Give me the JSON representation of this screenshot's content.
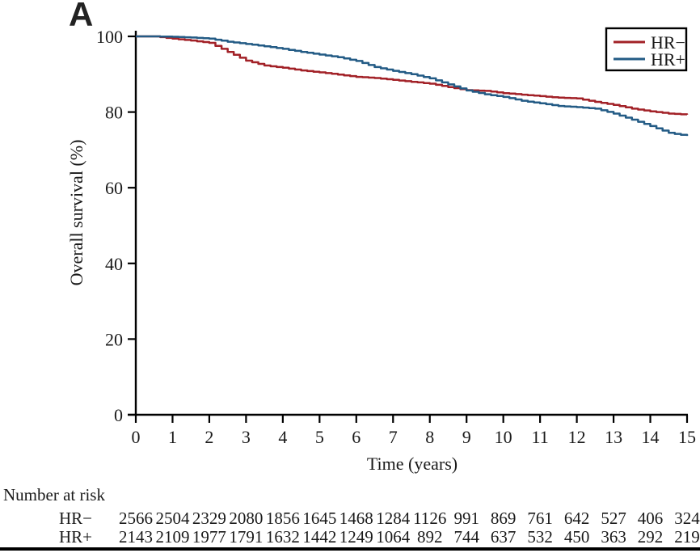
{
  "figure": {
    "panel_label": "A",
    "background": "#ffffff"
  },
  "chart_data": {
    "type": "line",
    "subtype": "kaplan-meier-step",
    "title": "",
    "xlabel": "Time (years)",
    "ylabel": "Overall survival (%)",
    "xlim": [
      0,
      15
    ],
    "ylim": [
      0,
      100
    ],
    "x_ticks": [
      0,
      1,
      2,
      3,
      4,
      5,
      6,
      7,
      8,
      9,
      10,
      11,
      12,
      13,
      14,
      15
    ],
    "y_ticks": [
      0,
      20,
      40,
      60,
      80,
      100
    ],
    "grid": false,
    "legend_position": "top-right",
    "axis_color": "#000000",
    "x": [
      0,
      0.5,
      1,
      1.5,
      2,
      2.5,
      3,
      3.5,
      4,
      4.5,
      5,
      5.5,
      6,
      6.5,
      7,
      7.5,
      8,
      8.5,
      9,
      9.5,
      10,
      10.5,
      11,
      11.5,
      12,
      12.5,
      13,
      13.5,
      14,
      14.5,
      15
    ],
    "series": [
      {
        "name": "HR−",
        "color": "#A22127",
        "values": [
          100,
          100,
          99.4,
          98.9,
          98.3,
          95.9,
          93.6,
          92.3,
          91.7,
          91.0,
          90.5,
          89.9,
          89.3,
          89.0,
          88.5,
          88.0,
          87.5,
          86.6,
          85.8,
          85.6,
          85.0,
          84.6,
          84.2,
          83.8,
          83.6,
          82.7,
          81.9,
          80.9,
          80.2,
          79.6,
          79.3
        ]
      },
      {
        "name": "HR+",
        "color": "#235B85",
        "values": [
          100,
          100,
          99.9,
          99.7,
          99.4,
          98.6,
          98.0,
          97.4,
          96.7,
          95.9,
          95.2,
          94.5,
          93.5,
          91.9,
          90.9,
          90.0,
          88.9,
          87.3,
          85.7,
          84.7,
          84.0,
          83.0,
          82.3,
          81.6,
          81.3,
          80.9,
          79.6,
          78.0,
          76.3,
          74.5,
          73.7
        ]
      }
    ],
    "number_at_risk": {
      "heading": "Number at risk",
      "time_points": [
        0,
        1,
        2,
        3,
        4,
        5,
        6,
        7,
        8,
        9,
        10,
        11,
        12,
        13,
        14,
        15
      ],
      "rows": [
        {
          "label": "HR−",
          "counts": [
            2566,
            2504,
            2329,
            2080,
            1856,
            1645,
            1468,
            1284,
            1126,
            991,
            869,
            761,
            642,
            527,
            406,
            324
          ]
        },
        {
          "label": "HR+",
          "counts": [
            2143,
            2109,
            1977,
            1791,
            1632,
            1442,
            1249,
            1064,
            892,
            744,
            637,
            532,
            450,
            363,
            292,
            219
          ]
        }
      ]
    }
  }
}
